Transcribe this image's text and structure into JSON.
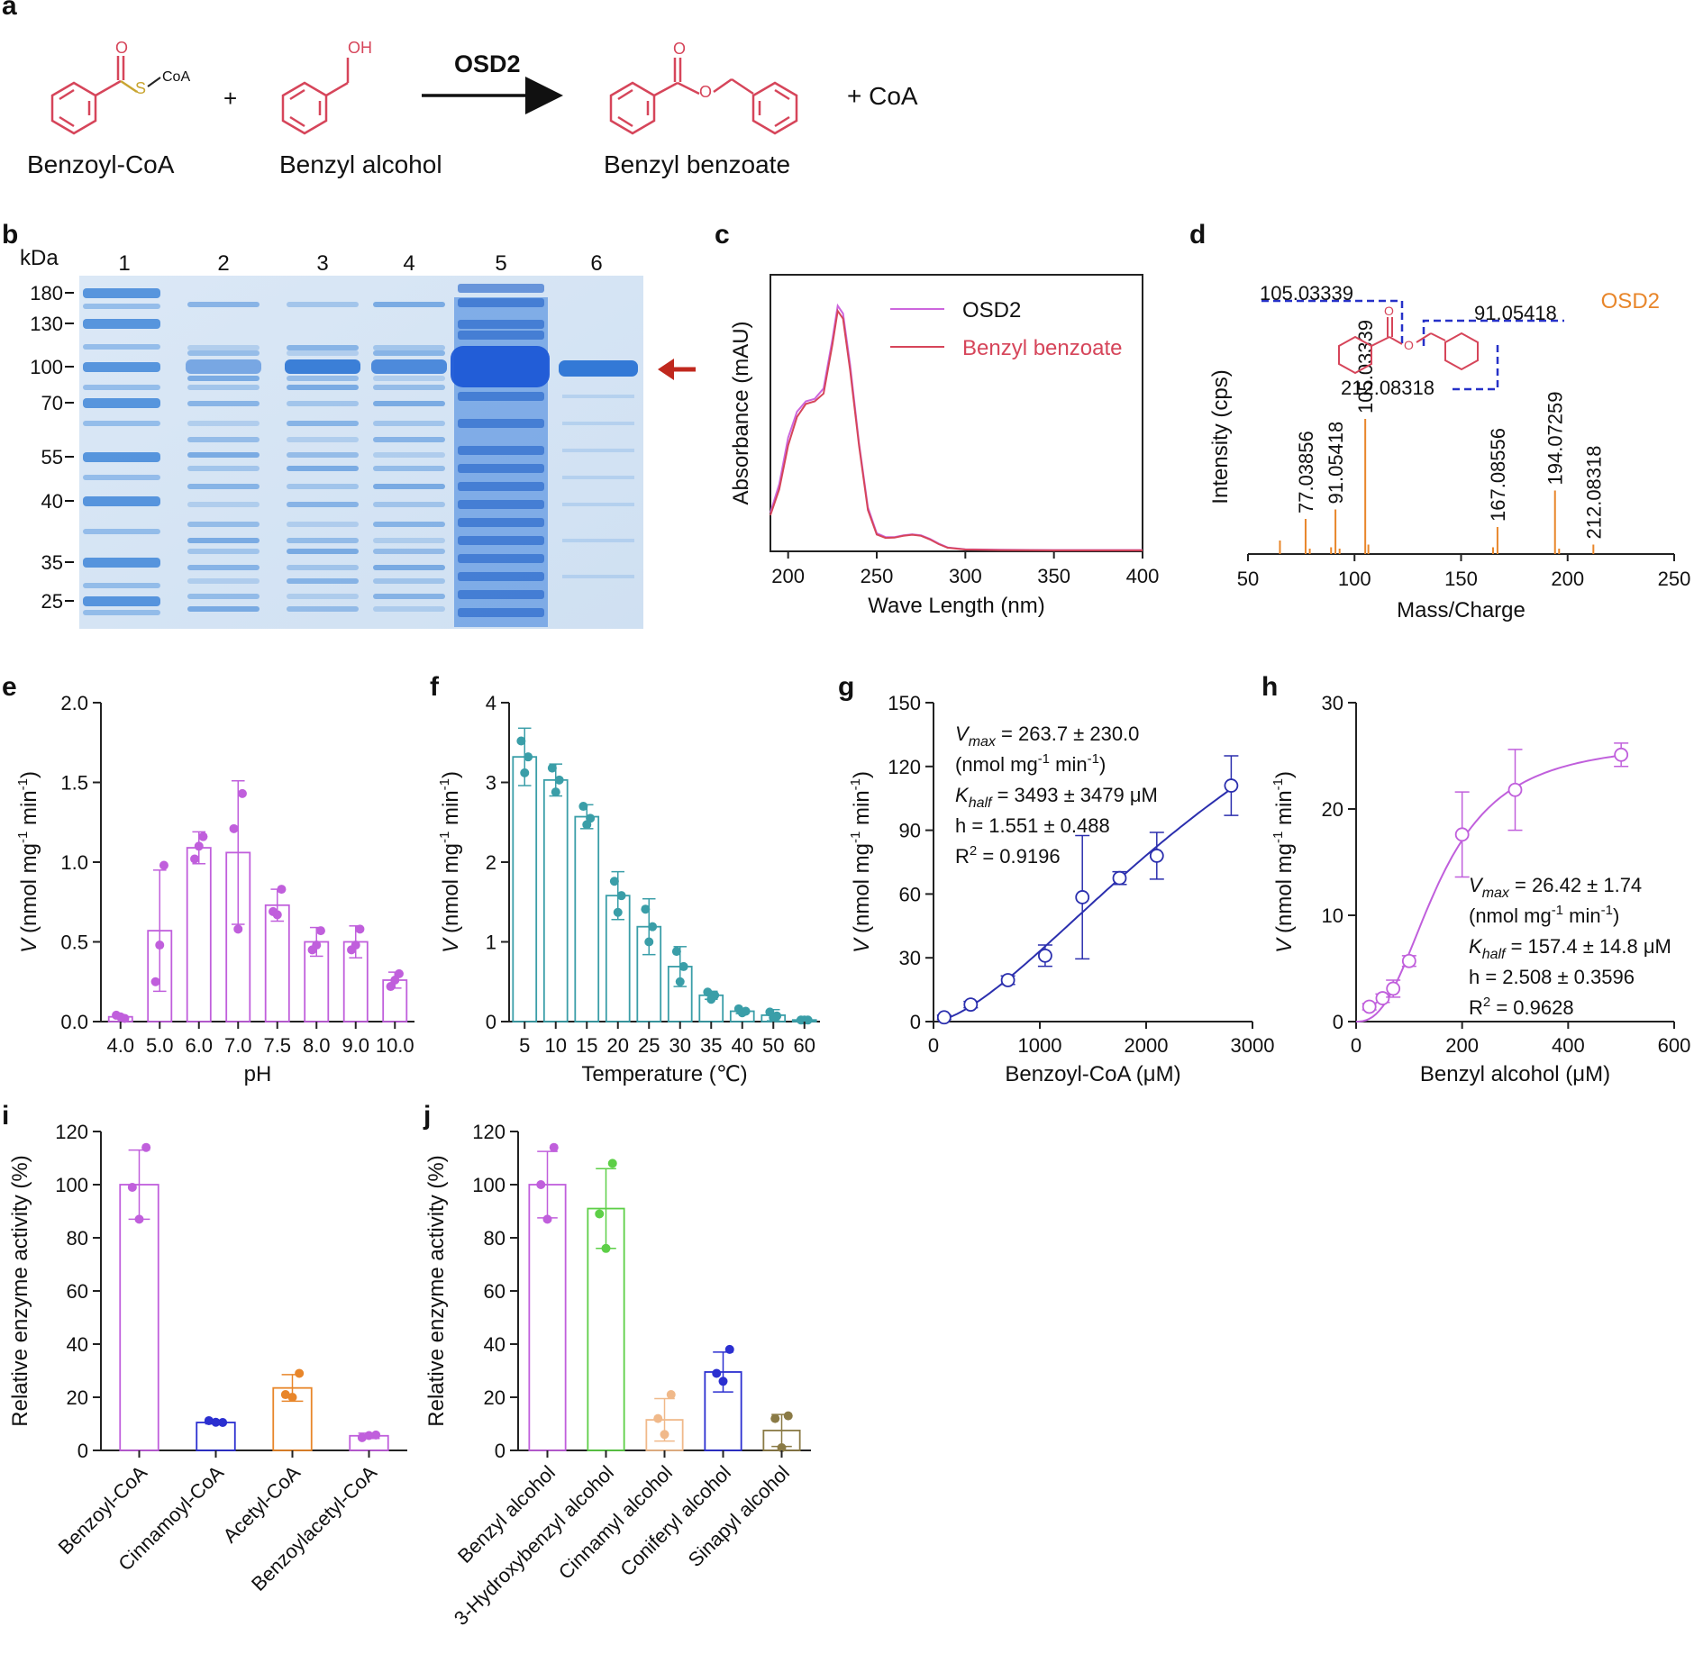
{
  "chart_data": [
    {
      "panel": "a",
      "type": "reaction-scheme",
      "enzyme": "OSD2",
      "substrate1": "Benzoyl-CoA",
      "substrate2": "Benzyl alcohol",
      "product": "Benzyl benzoate",
      "plus1": "+",
      "plus_coa": "+ CoA",
      "atoms": {
        "O": "O",
        "S": "S",
        "CoA": "CoA",
        "OH": "OH",
        "ester_O": "O"
      }
    },
    {
      "panel": "b",
      "type": "gel",
      "unit_label": "kDa",
      "lane_labels": [
        "1",
        "2",
        "3",
        "4",
        "5",
        "6"
      ],
      "markers": [
        "180",
        "130",
        "100",
        "70",
        "55",
        "40",
        "35",
        "25"
      ],
      "band_arrow_at_kDa": "100"
    },
    {
      "panel": "c",
      "type": "line",
      "xlabel": "Wave Length (nm)",
      "ylabel": "Absorbance (mAU)",
      "xlim": [
        190,
        400
      ],
      "xticks": [
        "200",
        "250",
        "300",
        "350",
        "400"
      ],
      "series": [
        {
          "name": "OSD2",
          "color": "#cc66dd",
          "x": [
            190,
            195,
            200,
            205,
            210,
            215,
            220,
            225,
            228,
            231,
            235,
            240,
            245,
            250,
            255,
            260,
            265,
            270,
            275,
            280,
            285,
            290,
            300,
            320,
            350,
            400
          ],
          "y": [
            0.15,
            0.26,
            0.44,
            0.54,
            0.58,
            0.59,
            0.63,
            0.82,
            0.95,
            0.92,
            0.72,
            0.42,
            0.17,
            0.07,
            0.055,
            0.055,
            0.062,
            0.066,
            0.062,
            0.048,
            0.03,
            0.015,
            0.008,
            0.006,
            0.005,
            0.005
          ]
        },
        {
          "name": "Benzyl benzoate",
          "color": "#d6455a",
          "x": [
            190,
            195,
            200,
            205,
            210,
            215,
            220,
            225,
            228,
            231,
            235,
            240,
            245,
            250,
            255,
            260,
            265,
            270,
            275,
            280,
            285,
            290,
            300,
            320,
            350,
            400
          ],
          "y": [
            0.14,
            0.24,
            0.41,
            0.52,
            0.57,
            0.58,
            0.61,
            0.8,
            0.93,
            0.9,
            0.7,
            0.41,
            0.16,
            0.065,
            0.052,
            0.053,
            0.06,
            0.064,
            0.06,
            0.046,
            0.028,
            0.014,
            0.007,
            0.005,
            0.004,
            0.004
          ]
        }
      ]
    },
    {
      "panel": "d",
      "type": "bar",
      "xlabel": "Mass/Charge",
      "ylabel": "Intensity (cps)",
      "xlim": [
        50,
        250
      ],
      "xticks": [
        "50",
        "100",
        "150",
        "200",
        "250"
      ],
      "legend": "OSD2",
      "peaks": [
        {
          "mz": 65.0,
          "rel": 0.1
        },
        {
          "mz": 77.03856,
          "rel": 0.26,
          "label": "77.03856"
        },
        {
          "mz": 79.0,
          "rel": 0.04
        },
        {
          "mz": 89.0,
          "rel": 0.05
        },
        {
          "mz": 91.05418,
          "rel": 0.33,
          "label": "91.05418"
        },
        {
          "mz": 93.0,
          "rel": 0.04
        },
        {
          "mz": 105.03339,
          "rel": 1.0,
          "label": "105.03339"
        },
        {
          "mz": 106.5,
          "rel": 0.07
        },
        {
          "mz": 165.0,
          "rel": 0.05
        },
        {
          "mz": 167.08556,
          "rel": 0.2,
          "label": "167.08556"
        },
        {
          "mz": 194.07259,
          "rel": 0.47,
          "label": "194.07259"
        },
        {
          "mz": 196.0,
          "rel": 0.04
        },
        {
          "mz": 212.08318,
          "rel": 0.07,
          "label": "212.08318"
        }
      ],
      "fragment_labels": [
        "105.03339",
        "91.05418",
        "212.08318"
      ]
    },
    {
      "panel": "e",
      "type": "bar",
      "color": "#c05fdc",
      "xlabel": "pH",
      "ylabel_main": "(nmol mg",
      "ylabel_sup1": "-1",
      "ylabel_mid": " min",
      "ylabel_sup2": "-1",
      "ylabel_end": ")",
      "ylabel_var": "V",
      "ylim": [
        0,
        2.0
      ],
      "yticks": [
        "0.0",
        "0.5",
        "1.0",
        "1.5",
        "2.0"
      ],
      "categories": [
        "4.0",
        "5.0",
        "6.0",
        "7.0",
        "7.5",
        "8.0",
        "9.0",
        "10.0"
      ],
      "values": [
        0.03,
        0.57,
        1.09,
        1.06,
        0.73,
        0.5,
        0.5,
        0.26
      ],
      "sd": [
        0.01,
        0.38,
        0.1,
        0.45,
        0.1,
        0.09,
        0.1,
        0.05
      ],
      "points": [
        [
          0.02,
          0.04,
          0.03
        ],
        [
          0.98,
          0.25,
          0.48
        ],
        [
          1.16,
          1.02,
          1.1
        ],
        [
          1.43,
          1.21,
          0.58
        ],
        [
          0.83,
          0.69,
          0.67
        ],
        [
          0.57,
          0.45,
          0.48
        ],
        [
          0.58,
          0.45,
          0.48
        ],
        [
          0.3,
          0.22,
          0.26
        ]
      ]
    },
    {
      "panel": "f",
      "type": "bar",
      "color": "#3a9ea8",
      "xlabel": "Temperature (℃)",
      "ylabel_main": "(nmol mg",
      "ylabel_sup1": "-1",
      "ylabel_mid": " min",
      "ylabel_sup2": "-1",
      "ylabel_end": ")",
      "ylabel_var": "V",
      "ylim": [
        0,
        4
      ],
      "yticks": [
        "0",
        "1",
        "2",
        "3",
        "4"
      ],
      "categories": [
        "5",
        "10",
        "15",
        "20",
        "25",
        "30",
        "35",
        "40",
        "50",
        "60"
      ],
      "values": [
        3.32,
        3.03,
        2.57,
        1.58,
        1.19,
        0.69,
        0.33,
        0.13,
        0.08,
        0.02
      ],
      "sd": [
        0.36,
        0.2,
        0.15,
        0.3,
        0.35,
        0.25,
        0.05,
        0.03,
        0.07,
        0.01
      ],
      "points": [
        [
          3.52,
          3.12,
          3.32
        ],
        [
          3.18,
          2.88,
          3.03
        ],
        [
          2.7,
          2.47,
          2.55
        ],
        [
          1.76,
          1.37,
          1.58
        ],
        [
          1.41,
          1.0,
          1.19
        ],
        [
          0.88,
          0.5,
          0.69
        ],
        [
          0.37,
          0.28,
          0.33
        ],
        [
          0.16,
          0.11,
          0.13
        ],
        [
          0.12,
          0.05,
          0.07
        ],
        [
          0.02,
          0.02,
          0.02
        ]
      ]
    },
    {
      "panel": "g",
      "type": "scatter",
      "color": "#2b2fae",
      "xlabel": "Benzoyl-CoA (μM)",
      "ylabel_var": "V",
      "ylabel_main": "(nmol mg",
      "ylabel_sup1": "-1",
      "ylabel_mid": " min",
      "ylabel_sup2": "-1",
      "ylabel_end": ")",
      "xlim": [
        0,
        3000
      ],
      "ylim": [
        0,
        150
      ],
      "xticks": [
        "0",
        "1000",
        "2000",
        "3000"
      ],
      "yticks": [
        "0",
        "30",
        "60",
        "90",
        "120",
        "150"
      ],
      "x": [
        100,
        350,
        700,
        1050,
        1400,
        1750,
        2100,
        2800
      ],
      "y": [
        2,
        8,
        19.5,
        31,
        58.5,
        67.5,
        78,
        111
      ],
      "sd": [
        1,
        1.5,
        2,
        5,
        29,
        3,
        11,
        14
      ],
      "fit": {
        "Vmax": 263.7,
        "Khalf": 3493,
        "h": 1.551
      },
      "annotation": {
        "vmax_var": "V",
        "vmax_sub": "max",
        "vmax_val": " = 263.7 ± 230.0",
        "unit_a": " (nmol mg",
        "unit_sup1": "-1",
        "unit_b": " min",
        "unit_sup2": "-1",
        "unit_c": ")",
        "khalf_var": "K",
        "khalf_sub": "half",
        "khalf_val": " = 3493 ± 3479 μM",
        "h_line": "h = 1.551 ± 0.488",
        "r2_a": "R",
        "r2_sup": "2",
        "r2_b": " = 0.9196"
      }
    },
    {
      "panel": "h",
      "type": "scatter",
      "color": "#c05fdc",
      "xlabel": "Benzyl alcohol (μM)",
      "ylabel_var": "V",
      "ylabel_main": "(nmol mg",
      "ylabel_sup1": "-1",
      "ylabel_mid": " min",
      "ylabel_sup2": "-1",
      "ylabel_end": ")",
      "xlim": [
        0,
        600
      ],
      "ylim": [
        0,
        30
      ],
      "xticks": [
        "0",
        "200",
        "400",
        "600"
      ],
      "yticks": [
        "0",
        "10",
        "20",
        "30"
      ],
      "x": [
        25,
        50,
        70,
        100,
        200,
        300,
        500
      ],
      "y": [
        1.4,
        2.2,
        3.1,
        5.7,
        17.6,
        21.8,
        25.1
      ],
      "sd": [
        0.3,
        0.4,
        0.8,
        0.5,
        4,
        3.8,
        1.1
      ],
      "fit": {
        "Vmax": 26.42,
        "Khalf": 157.4,
        "h": 2.508
      },
      "annotation": {
        "vmax_var": "V",
        "vmax_sub": "max",
        "vmax_val": " = 26.42 ± 1.74",
        "unit_a": " (nmol mg",
        "unit_sup1": "-1",
        "unit_b": " min",
        "unit_sup2": "-1",
        "unit_c": ")",
        "khalf_var": "K",
        "khalf_sub": "half",
        "khalf_val": " = 157.4 ± 14.8 μM",
        "h_line": "h = 2.508 ± 0.3596",
        "r2_a": "R",
        "r2_sup": "2",
        "r2_b": " = 0.9628"
      }
    },
    {
      "panel": "i",
      "type": "bar",
      "ylabel": "Relative enzyme activity (%)",
      "ylim": [
        0,
        120
      ],
      "yticks": [
        "0",
        "20",
        "40",
        "60",
        "80",
        "100",
        "120"
      ],
      "categories": [
        "Benzoyl-CoA",
        "Cinnamoyl-CoA",
        "Acetyl-CoA",
        "Benzoylacetyl-CoA"
      ],
      "colors": [
        "#c05fdc",
        "#2b2fd0",
        "#e8862a",
        "#c05fdc"
      ],
      "values": [
        100,
        10.5,
        23.5,
        5.5
      ],
      "sd": [
        13,
        0.5,
        5,
        1
      ],
      "points": [
        [
          114,
          99,
          87
        ],
        [
          10.5,
          11.2,
          10.6
        ],
        [
          29,
          21,
          20
        ],
        [
          5.8,
          4.8,
          5.6
        ]
      ]
    },
    {
      "panel": "j",
      "type": "bar",
      "ylabel": "Relative enzyme activity (%)",
      "ylim": [
        0,
        120
      ],
      "yticks": [
        "0",
        "20",
        "40",
        "60",
        "80",
        "100",
        "120"
      ],
      "categories": [
        "Benzyl alcohol",
        "3-Hydroxybenzyl alcohol",
        "Cinnamyl alcohol",
        "Coniferyl alcohol",
        "Sinapyl alcohol"
      ],
      "colors": [
        "#c05fdc",
        "#5dcf47",
        "#f0b98a",
        "#2b2fd0",
        "#8a7a45"
      ],
      "values": [
        100,
        91,
        11.5,
        29.5,
        7.5
      ],
      "sd": [
        12.5,
        15,
        8,
        7.5,
        6
      ],
      "points": [
        [
          114,
          100,
          87
        ],
        [
          108,
          89,
          76
        ],
        [
          21,
          12,
          6
        ],
        [
          38,
          29,
          26
        ],
        [
          13,
          12,
          1
        ]
      ]
    }
  ]
}
